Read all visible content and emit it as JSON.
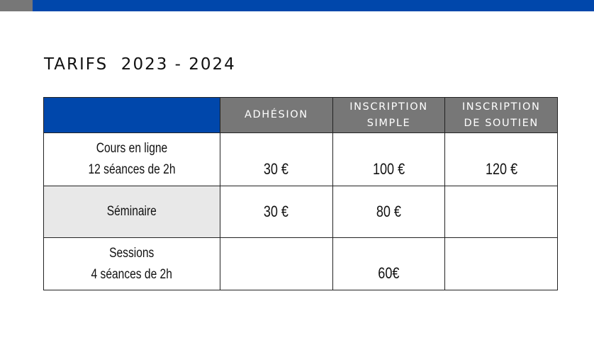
{
  "colors": {
    "accent_blue": "#0047ab",
    "header_grey": "#777777",
    "shaded_cell": "#e8e8e8"
  },
  "title": "TARIFS  2023 - 2024",
  "table": {
    "headers": [
      "",
      "ADHÉSION",
      "INSCRIPTION SIMPLE",
      "INSCRIPTION DE SOUTIEN"
    ],
    "header_lines": {
      "adhesion": [
        "ADHÉSION"
      ],
      "simple": [
        "INSCRIPTION",
        "SIMPLE"
      ],
      "soutien": [
        "INSCRIPTION",
        "DE SOUTIEN"
      ]
    },
    "rows": [
      {
        "label_lines": [
          "Cours en ligne",
          "12 séances de 2h"
        ],
        "adhesion": "30 €",
        "simple": "100 €",
        "soutien": "120 €"
      },
      {
        "label_lines": [
          "Séminaire"
        ],
        "adhesion": "30 €",
        "simple": "80 €",
        "soutien": ""
      },
      {
        "label_lines": [
          "Sessions",
          "4 séances de 2h"
        ],
        "adhesion": "",
        "simple": "60€",
        "soutien": ""
      }
    ]
  }
}
